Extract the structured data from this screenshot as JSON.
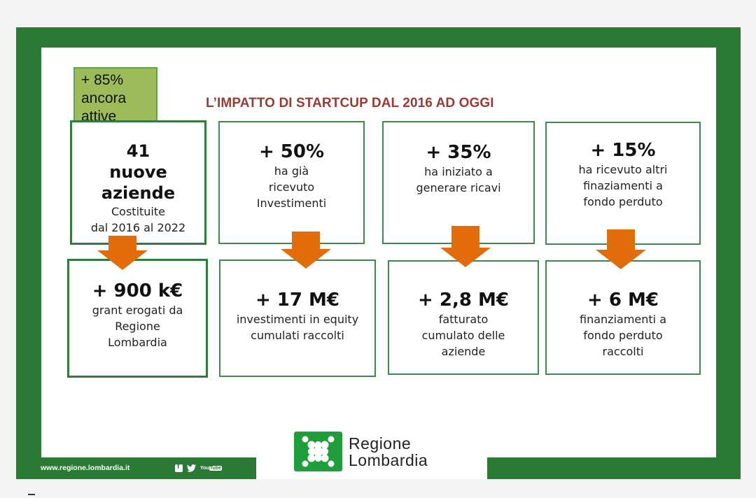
{
  "slide": {
    "title": "L’IMPATTO DI STARTCUP DAL 2016 AD OGGI",
    "badge": {
      "line1": "+ 85%",
      "line2": "ancora",
      "line3": "attive"
    },
    "top_row": [
      {
        "big1": "41",
        "big2": "nuove",
        "big3": "aziende",
        "text1": "Costituite",
        "text2": "dal 2016 al 2022"
      },
      {
        "big": "+ 50%",
        "text1": "ha già",
        "text2": "ricevuto",
        "text3": "Investimenti"
      },
      {
        "big": "+ 35%",
        "text1": "ha iniziato a",
        "text2": "generare ricavi"
      },
      {
        "big": "+ 15%",
        "text1": "ha ricevuto altri",
        "text2": "finaziamenti a",
        "text3": "fondo perduto"
      }
    ],
    "bottom_row": [
      {
        "big": "+ 900 k€",
        "text1": "grant erogati da",
        "text2": "Regione",
        "text3": "Lombardia"
      },
      {
        "big": "+ 17 M€",
        "text1": "investimenti in equity",
        "text2": "cumulati raccolti"
      },
      {
        "big": "+ 2,8 M€",
        "text1": "fatturato",
        "text2": "cumulato delle",
        "text3": "aziende"
      },
      {
        "big": "+ 6 M€",
        "text1": "finanziamenti a",
        "text2": "fondo perduto",
        "text3": "raccolti"
      }
    ],
    "arrow_icon": "down-arrow-icon",
    "colors": {
      "frame_green": "#2a7a35",
      "title_red": "#9b3a33",
      "arrow_orange": "#e36c0a",
      "badge_green": "#9dbb59"
    }
  },
  "footer": {
    "url": "www.regione.lombardia.it",
    "social_icons": [
      "facebook-icon",
      "twitter-icon",
      "youtube-icon"
    ],
    "youtube_you": "You",
    "youtube_tube": "Tube",
    "twitter_glyph": "🐦",
    "logo": {
      "line1": "Regione",
      "line2": "Lombardia",
      "icon": "regione-lombardia-logo-icon"
    }
  }
}
